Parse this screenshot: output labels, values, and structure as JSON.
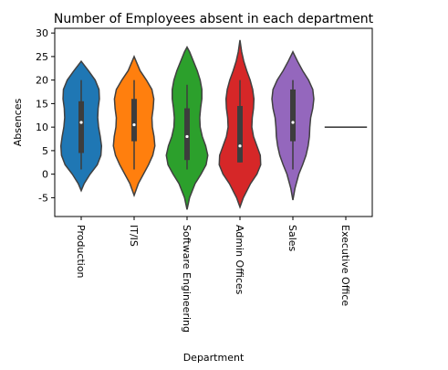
{
  "chart_data": {
    "type": "violin",
    "title": "Number of Employees absent in each department",
    "xlabel": "Department",
    "ylabel": "Absences",
    "ylim": [
      -9,
      31
    ],
    "yticks": [
      -5,
      0,
      5,
      10,
      15,
      20,
      25,
      30
    ],
    "grid": false,
    "legend": "none",
    "categories": [
      "Production",
      "IT/IS",
      "Software Engineering",
      "Admin Offices",
      "Sales",
      "Executive Office"
    ],
    "colors": [
      "#1f77b4",
      "#ff7f0e",
      "#2ca02c",
      "#d62728",
      "#9467bd",
      "#8c564b"
    ],
    "series": [
      {
        "name": "Production",
        "box": {
          "q1": 4.5,
          "median": 11,
          "q3": 15.5,
          "whisker_low": 1,
          "whisker_high": 20
        },
        "density": [
          [
            -3.5,
            0.0
          ],
          [
            -2,
            0.14
          ],
          [
            0,
            0.42
          ],
          [
            2,
            0.76
          ],
          [
            4,
            0.93
          ],
          [
            6,
            0.96
          ],
          [
            8,
            0.9
          ],
          [
            10,
            0.82
          ],
          [
            12,
            0.78
          ],
          [
            14,
            0.8
          ],
          [
            16,
            0.86
          ],
          [
            18,
            0.84
          ],
          [
            20,
            0.66
          ],
          [
            22,
            0.34
          ],
          [
            24,
            0.0
          ]
        ]
      },
      {
        "name": "IT/IS",
        "box": {
          "q1": 7,
          "median": 10.5,
          "q3": 16,
          "whisker_low": 1,
          "whisker_high": 20
        },
        "density": [
          [
            -4.5,
            0.0
          ],
          [
            -2,
            0.2
          ],
          [
            0,
            0.44
          ],
          [
            2,
            0.68
          ],
          [
            4,
            0.88
          ],
          [
            6,
            0.98
          ],
          [
            8,
            0.94
          ],
          [
            10,
            0.86
          ],
          [
            12,
            0.84
          ],
          [
            14,
            0.9
          ],
          [
            16,
            0.93
          ],
          [
            18,
            0.84
          ],
          [
            20,
            0.58
          ],
          [
            22,
            0.28
          ],
          [
            25,
            0.0
          ]
        ]
      },
      {
        "name": "Software Engineering",
        "box": {
          "q1": 3,
          "median": 8,
          "q3": 14,
          "whisker_low": 1,
          "whisker_high": 19
        },
        "density": [
          [
            -7.5,
            0.0
          ],
          [
            -5,
            0.12
          ],
          [
            -2,
            0.38
          ],
          [
            0,
            0.66
          ],
          [
            2,
            0.9
          ],
          [
            4,
            0.98
          ],
          [
            6,
            0.88
          ],
          [
            8,
            0.72
          ],
          [
            10,
            0.62
          ],
          [
            12,
            0.6
          ],
          [
            14,
            0.64
          ],
          [
            16,
            0.7
          ],
          [
            18,
            0.7
          ],
          [
            20,
            0.62
          ],
          [
            22,
            0.48
          ],
          [
            24,
            0.3
          ],
          [
            26,
            0.12
          ],
          [
            27,
            0.0
          ]
        ]
      },
      {
        "name": "Admin Offices",
        "box": {
          "q1": 2.5,
          "median": 6,
          "q3": 14.5,
          "whisker_low": 2.5,
          "whisker_high": 20
        },
        "density": [
          [
            -7,
            0.0
          ],
          [
            -5,
            0.16
          ],
          [
            -2,
            0.5
          ],
          [
            0,
            0.8
          ],
          [
            2,
            0.98
          ],
          [
            4,
            0.96
          ],
          [
            6,
            0.8
          ],
          [
            8,
            0.64
          ],
          [
            10,
            0.56
          ],
          [
            12,
            0.58
          ],
          [
            14,
            0.64
          ],
          [
            16,
            0.66
          ],
          [
            18,
            0.6
          ],
          [
            20,
            0.48
          ],
          [
            22,
            0.32
          ],
          [
            24,
            0.18
          ],
          [
            26,
            0.08
          ],
          [
            28.5,
            0.0
          ]
        ]
      },
      {
        "name": "Sales",
        "box": {
          "q1": 7,
          "median": 11,
          "q3": 18,
          "whisker_low": 1,
          "whisker_high": 20
        },
        "density": [
          [
            -5.5,
            0.0
          ],
          [
            -3,
            0.1
          ],
          [
            0,
            0.28
          ],
          [
            2,
            0.46
          ],
          [
            4,
            0.62
          ],
          [
            6,
            0.72
          ],
          [
            8,
            0.78
          ],
          [
            10,
            0.8
          ],
          [
            12,
            0.84
          ],
          [
            14,
            0.94
          ],
          [
            16,
            0.99
          ],
          [
            18,
            0.94
          ],
          [
            20,
            0.74
          ],
          [
            22,
            0.46
          ],
          [
            24,
            0.22
          ],
          [
            26,
            0.0
          ]
        ]
      },
      {
        "name": "Executive Office",
        "value": 10,
        "flat": true
      }
    ]
  }
}
